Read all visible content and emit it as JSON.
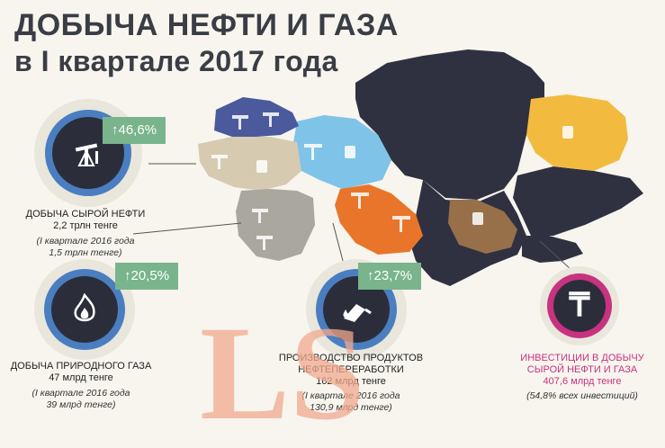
{
  "title": {
    "line1": "ДОБЫЧА НЕФТИ И ГАЗА",
    "line2": "в I квартале 2017 года"
  },
  "oil": {
    "badge": "↑46,6%",
    "title": "ДОБЫЧА СЫРОЙ НЕФТИ",
    "value": "2,2 трлн тенге",
    "note1": "(I квартале 2016 года",
    "note2": "1,5 трлн тенге)",
    "icon": "oil-pump-icon"
  },
  "gas": {
    "badge": "↑20,5%",
    "title": "ДОБЫЧА ПРИРОДНОГО ГАЗА",
    "value": "47 млрд тенге",
    "note1": "(I квартале 2016 года",
    "note2": "39 млрд тенге)",
    "icon": "flame-icon"
  },
  "refining": {
    "badge": "↑23,7%",
    "title1": "ПРОИЗВОДСТВО ПРОДУКТОВ",
    "title2": "НЕФТЕПЕРЕРАБОТКИ",
    "value": "162 млрд тенге",
    "note1": "(I квартале 2016 года",
    "note2": "130,9 млрд тенге)",
    "icon": "fuel-nozzle-icon"
  },
  "investment": {
    "title1": "ИНВЕСТИЦИИ В ДОБЫЧУ",
    "title2": "СЫРОЙ НЕФТИ И ГАЗА",
    "value": "407,6 млрд тенге",
    "note": "(54,8% всех инвестиций)",
    "symbol": "₸",
    "icon": "tenge-icon"
  },
  "watermark": "LS",
  "colors": {
    "title": "#3a3d45",
    "badge": "#79b48c",
    "dark_region": "#2f3140",
    "blue_region": "#7fc3e8",
    "navy_region": "#4a5a9c",
    "beige_region": "#d6cbb0",
    "grey_region": "#a9a79e",
    "orange_region": "#e8752a",
    "brown_region": "#97704a",
    "yellow_region": "#f2bb3f",
    "investment_accent": "#c8327f"
  }
}
